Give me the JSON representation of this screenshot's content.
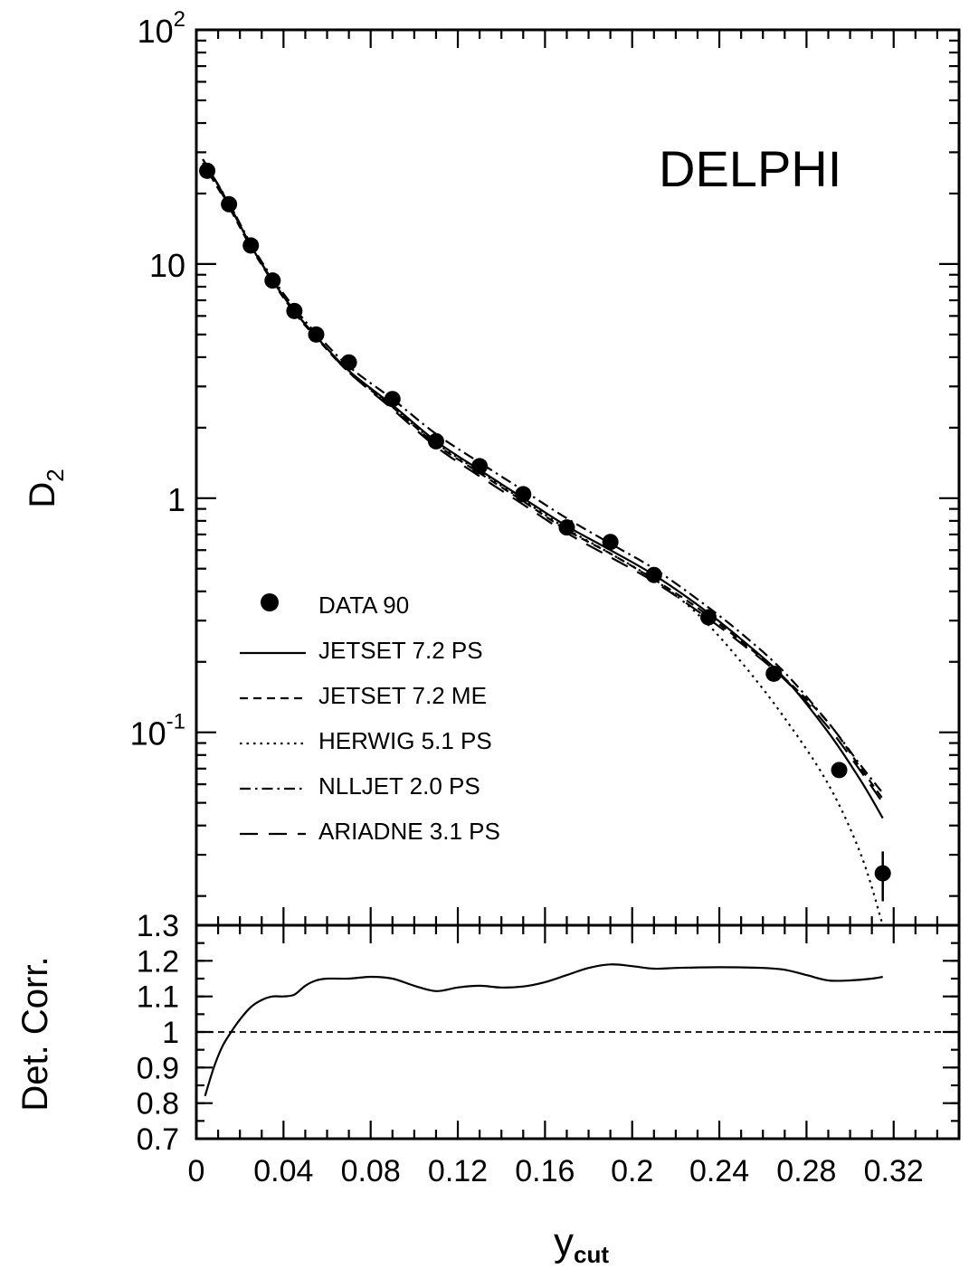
{
  "chart_data": [
    {
      "type": "line",
      "panel": "main",
      "annotation": "DELPHI",
      "ylabel": "D",
      "ylabel_sub": "2",
      "yscale": "log",
      "ylim": [
        0.015,
        100
      ],
      "xlim": [
        0,
        0.35
      ],
      "y_tick_labels": [
        {
          "value": 100,
          "base": "10",
          "exp": "2"
        },
        {
          "value": 10,
          "base": "10",
          "exp": ""
        },
        {
          "value": 1,
          "base": "1",
          "exp": ""
        },
        {
          "value": 0.1,
          "base": "10",
          "exp": "-1"
        }
      ],
      "legend_position": "lower-left",
      "series": [
        {
          "name": "DATA 90",
          "style": "points",
          "x": [
            0.005,
            0.015,
            0.025,
            0.035,
            0.045,
            0.055,
            0.07,
            0.09,
            0.11,
            0.13,
            0.15,
            0.17,
            0.19,
            0.21,
            0.235,
            0.265,
            0.295,
            0.315
          ],
          "y": [
            25,
            18,
            12,
            8.5,
            6.3,
            5.0,
            3.8,
            2.65,
            1.75,
            1.37,
            1.04,
            0.75,
            0.65,
            0.47,
            0.31,
            0.178,
            0.069,
            0.025
          ],
          "yerr": [
            0,
            0,
            0,
            0,
            0,
            0,
            0,
            0,
            0,
            0,
            0,
            0,
            0,
            0,
            0,
            0,
            0.005,
            0.006
          ]
        },
        {
          "name": "JETSET 7.2 PS",
          "style": "solid",
          "x": [
            0.003,
            0.015,
            0.025,
            0.035,
            0.045,
            0.055,
            0.07,
            0.09,
            0.11,
            0.13,
            0.15,
            0.17,
            0.19,
            0.21,
            0.23,
            0.25,
            0.27,
            0.29,
            0.305,
            0.315
          ],
          "y": [
            28,
            18,
            12,
            8.5,
            6.3,
            4.9,
            3.5,
            2.5,
            1.75,
            1.32,
            1.0,
            0.76,
            0.6,
            0.47,
            0.35,
            0.25,
            0.17,
            0.1,
            0.062,
            0.043
          ]
        },
        {
          "name": "JETSET 7.2 ME",
          "style": "dashed-short",
          "x": [
            0.003,
            0.015,
            0.025,
            0.035,
            0.045,
            0.055,
            0.07,
            0.09,
            0.11,
            0.13,
            0.15,
            0.17,
            0.19,
            0.21,
            0.23,
            0.25,
            0.27,
            0.29,
            0.305,
            0.315
          ],
          "y": [
            27,
            17.5,
            11.8,
            8.4,
            6.2,
            4.85,
            3.45,
            2.45,
            1.7,
            1.28,
            0.97,
            0.73,
            0.58,
            0.45,
            0.34,
            0.245,
            0.17,
            0.11,
            0.07,
            0.052
          ]
        },
        {
          "name": "HERWIG 5.1 PS",
          "style": "dotted",
          "x": [
            0.003,
            0.015,
            0.025,
            0.035,
            0.045,
            0.055,
            0.07,
            0.09,
            0.11,
            0.13,
            0.15,
            0.17,
            0.19,
            0.21,
            0.23,
            0.25,
            0.27,
            0.29,
            0.305,
            0.315
          ],
          "y": [
            28,
            18,
            12,
            8.5,
            6.3,
            4.9,
            3.5,
            2.45,
            1.72,
            1.3,
            0.98,
            0.74,
            0.58,
            0.45,
            0.32,
            0.2,
            0.115,
            0.06,
            0.03,
            0.015
          ]
        },
        {
          "name": "NLLJET 2.0 PS",
          "style": "dash-dot",
          "x": [
            0.003,
            0.015,
            0.025,
            0.035,
            0.045,
            0.055,
            0.07,
            0.09,
            0.11,
            0.13,
            0.15,
            0.17,
            0.19,
            0.21,
            0.23,
            0.25,
            0.27,
            0.29,
            0.305,
            0.315
          ],
          "y": [
            28,
            18.2,
            12.2,
            8.7,
            6.5,
            5.05,
            3.65,
            2.65,
            1.88,
            1.42,
            1.08,
            0.82,
            0.64,
            0.5,
            0.37,
            0.265,
            0.18,
            0.11,
            0.072,
            0.055
          ]
        },
        {
          "name": "ARIADNE 3.1 PS",
          "style": "dashed-long",
          "x": [
            0.003,
            0.015,
            0.025,
            0.035,
            0.045,
            0.055,
            0.07,
            0.09,
            0.11,
            0.13,
            0.15,
            0.17,
            0.19,
            0.21,
            0.23,
            0.25,
            0.27,
            0.29,
            0.305,
            0.315
          ],
          "y": [
            27,
            17.8,
            12,
            8.5,
            6.3,
            4.9,
            3.45,
            2.4,
            1.66,
            1.24,
            0.94,
            0.71,
            0.56,
            0.44,
            0.33,
            0.24,
            0.168,
            0.105,
            0.068,
            0.05
          ]
        }
      ]
    },
    {
      "type": "line",
      "panel": "detector-correction",
      "ylabel": "Det. Corr.",
      "xlabel": "y",
      "xlabel_sub": "cut",
      "xlim": [
        0,
        0.35
      ],
      "ylim": [
        0.7,
        1.3
      ],
      "x_ticks": [
        0,
        0.04,
        0.08,
        0.12,
        0.16,
        0.2,
        0.24,
        0.28,
        0.32
      ],
      "x_tick_labels": [
        "0",
        "0.04",
        "0.08",
        "0.12",
        "0.16",
        "0.2",
        "0.24",
        "0.28",
        "0.32"
      ],
      "y_ticks": [
        0.7,
        0.8,
        0.9,
        1.0,
        1.1,
        1.2,
        1.3
      ],
      "y_tick_labels": [
        "0.7",
        "0.8",
        "0.9",
        "1",
        "1.1",
        "1.2",
        "1.3"
      ],
      "reference_line": 1.0,
      "series": [
        {
          "style": "solid",
          "x": [
            0.004,
            0.008,
            0.012,
            0.016,
            0.02,
            0.025,
            0.03,
            0.035,
            0.04,
            0.045,
            0.05,
            0.055,
            0.06,
            0.07,
            0.08,
            0.09,
            0.1,
            0.11,
            0.12,
            0.13,
            0.14,
            0.15,
            0.16,
            0.17,
            0.18,
            0.19,
            0.2,
            0.21,
            0.22,
            0.24,
            0.26,
            0.27,
            0.28,
            0.29,
            0.3,
            0.31,
            0.315
          ],
          "y": [
            0.82,
            0.9,
            0.96,
            1.0,
            1.035,
            1.07,
            1.09,
            1.1,
            1.1,
            1.105,
            1.13,
            1.145,
            1.15,
            1.15,
            1.155,
            1.15,
            1.13,
            1.115,
            1.125,
            1.13,
            1.125,
            1.128,
            1.14,
            1.16,
            1.18,
            1.19,
            1.185,
            1.178,
            1.18,
            1.182,
            1.18,
            1.175,
            1.16,
            1.145,
            1.145,
            1.15,
            1.155
          ]
        }
      ]
    }
  ]
}
